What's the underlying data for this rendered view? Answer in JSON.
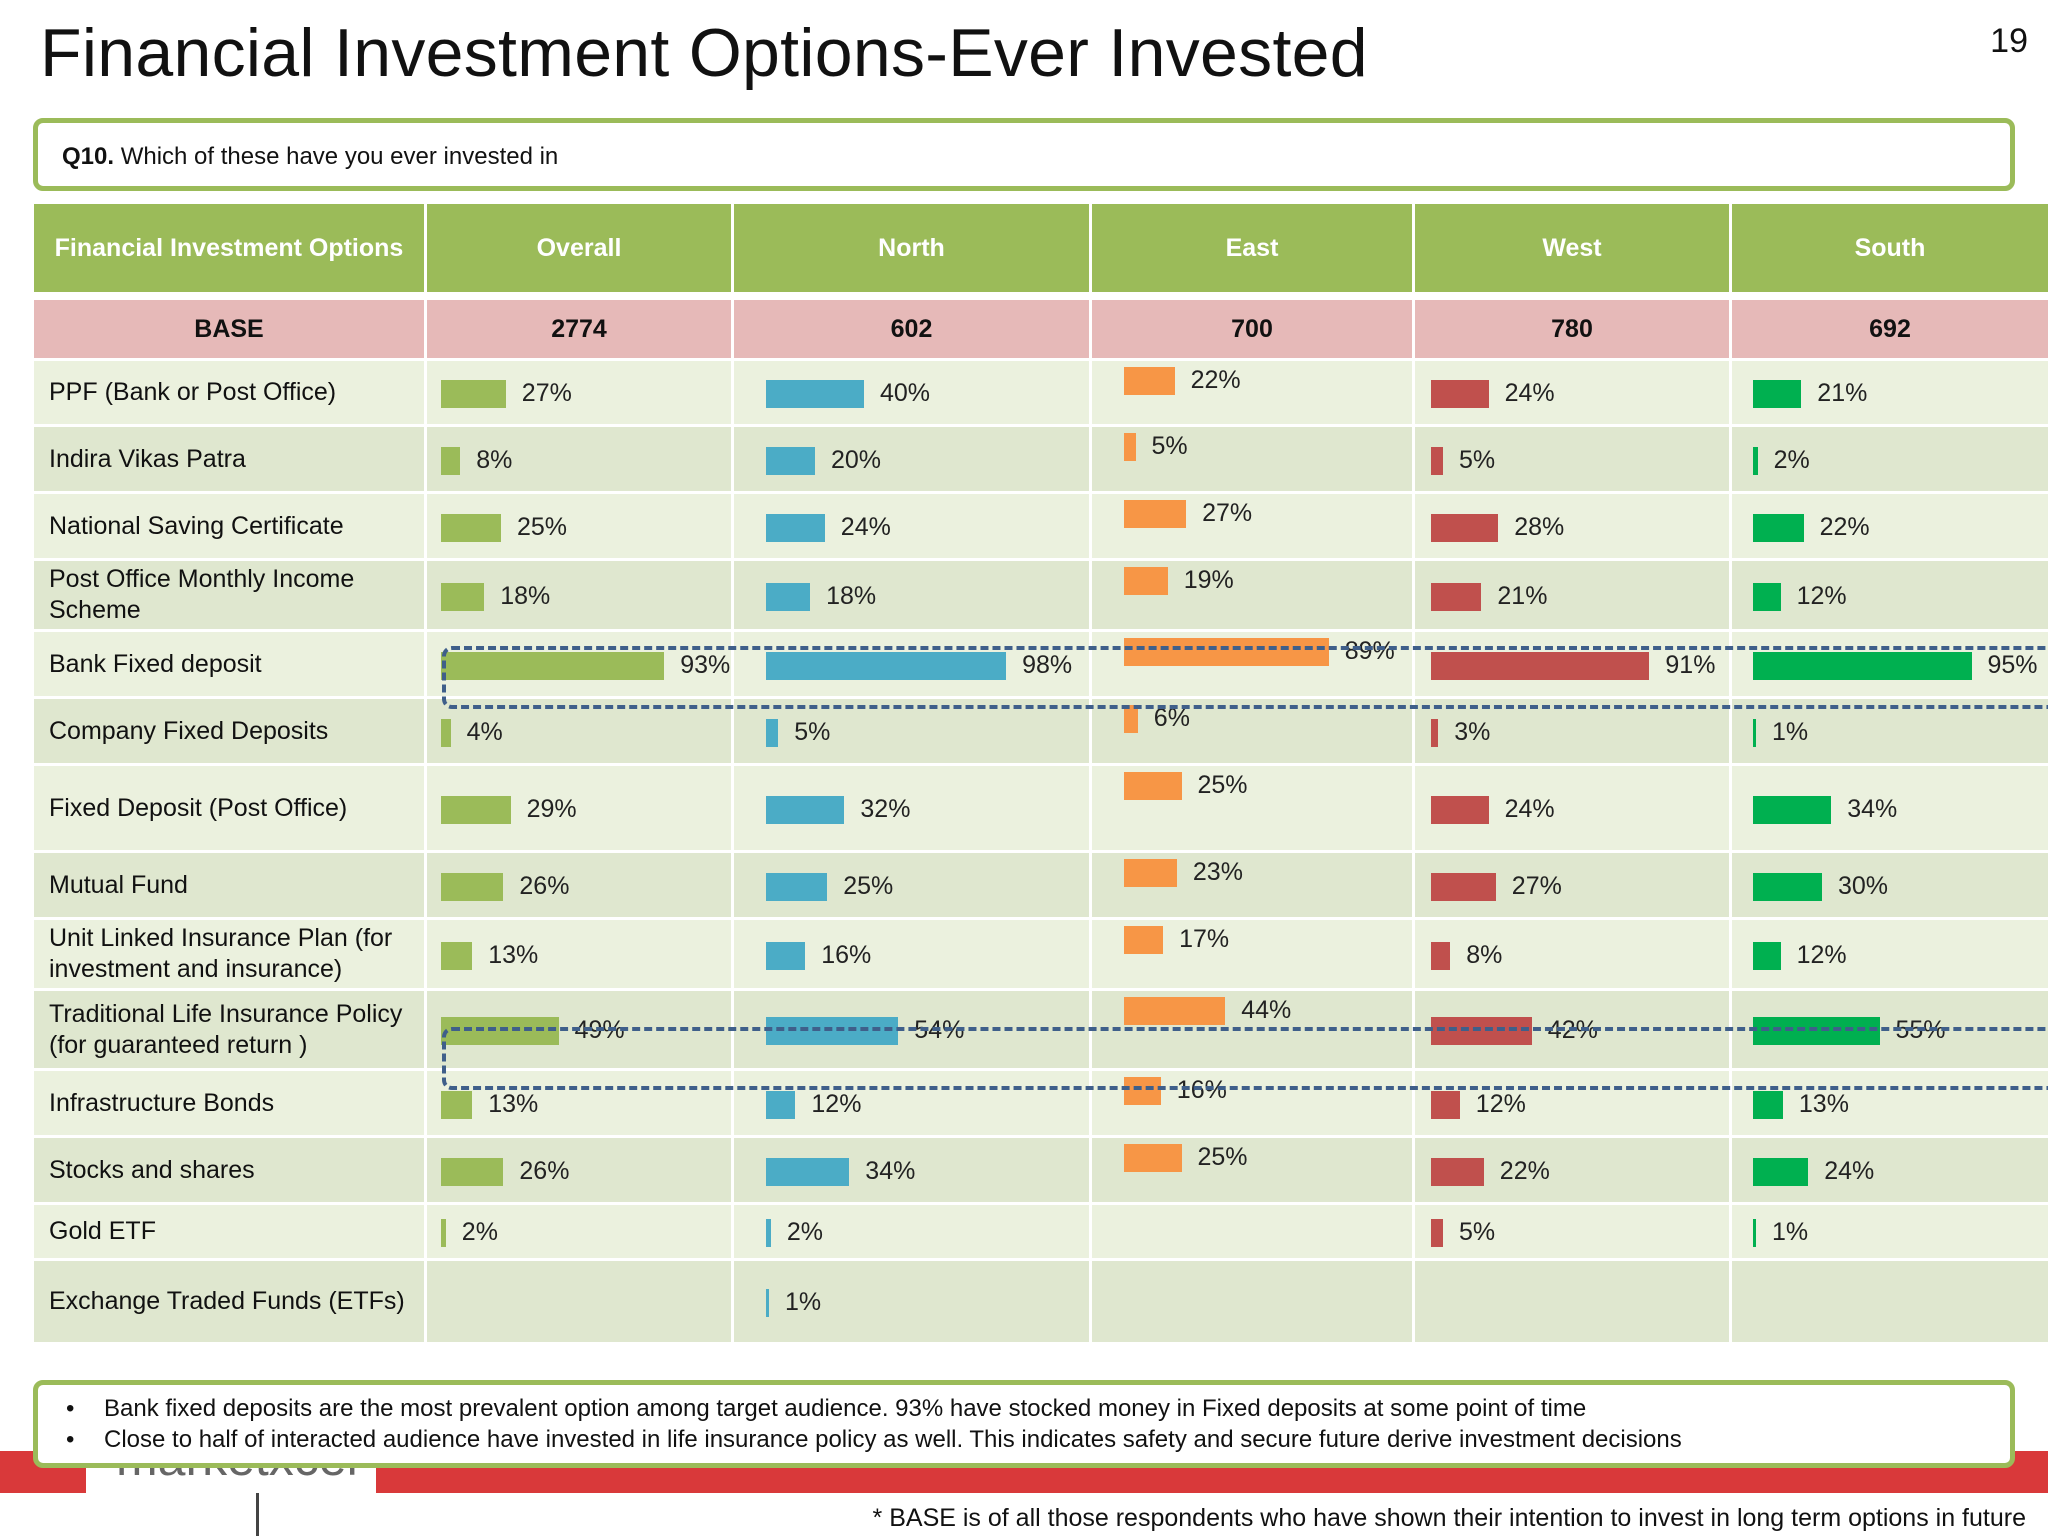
{
  "page": {
    "title": "Financial Investment Options-Ever Invested",
    "page_number": "19"
  },
  "question": {
    "label": "Q10.",
    "text": " Which of these have you ever invested in"
  },
  "chart_data": {
    "type": "bar",
    "header": [
      "Financial Investment Options",
      "Overall",
      "North",
      "East",
      "West",
      "South"
    ],
    "base": {
      "label": "BASE",
      "values": [
        "2774",
        "602",
        "700",
        "780",
        "692"
      ]
    },
    "categories": [
      "PPF (Bank or Post Office)",
      "Indira Vikas Patra",
      "National Saving Certificate",
      "Post Office Monthly Income Scheme",
      "Bank Fixed deposit",
      "Company Fixed Deposits",
      "Fixed Deposit (Post Office)",
      "Mutual Fund",
      "Unit Linked Insurance Plan (for investment and insurance)",
      "Traditional Life Insurance Policy (for guaranteed return )",
      "Infrastructure Bonds",
      "Stocks and shares",
      "Gold ETF",
      "Exchange Traded Funds (ETFs)"
    ],
    "series": [
      {
        "name": "Overall",
        "color": "#9bbb59",
        "values": [
          27,
          8,
          25,
          18,
          93,
          4,
          29,
          26,
          13,
          49,
          13,
          26,
          2,
          null
        ]
      },
      {
        "name": "North",
        "color": "#4bacc6",
        "values": [
          40,
          20,
          24,
          18,
          98,
          5,
          32,
          25,
          16,
          54,
          12,
          34,
          2,
          1
        ]
      },
      {
        "name": "East",
        "color": "#f79646",
        "values": [
          22,
          5,
          27,
          19,
          89,
          6,
          25,
          23,
          17,
          44,
          16,
          25,
          null,
          null
        ]
      },
      {
        "name": "West",
        "color": "#c0504d",
        "values": [
          24,
          5,
          28,
          21,
          91,
          3,
          24,
          27,
          8,
          42,
          12,
          22,
          5,
          null
        ]
      },
      {
        "name": "South",
        "color": "#00b050",
        "values": [
          21,
          2,
          22,
          12,
          95,
          1,
          34,
          30,
          12,
          55,
          13,
          24,
          1,
          null
        ]
      }
    ],
    "unit": "%",
    "highlighted_rows": [
      "Bank Fixed deposit",
      "Traditional Life Insurance Policy (for guaranteed return )"
    ]
  },
  "notes": [
    "Bank fixed deposits are the most prevalent option among target audience. 93% have stocked money in Fixed deposits at some point of time",
    "Close to half of interacted audience have invested in life insurance policy as well. This indicates safety and secure future derive investment decisions"
  ],
  "footer": {
    "logo_text": "marketxcel",
    "footnote": "* BASE is of all those respondents who have shown their intention to invest in long term options in future"
  }
}
